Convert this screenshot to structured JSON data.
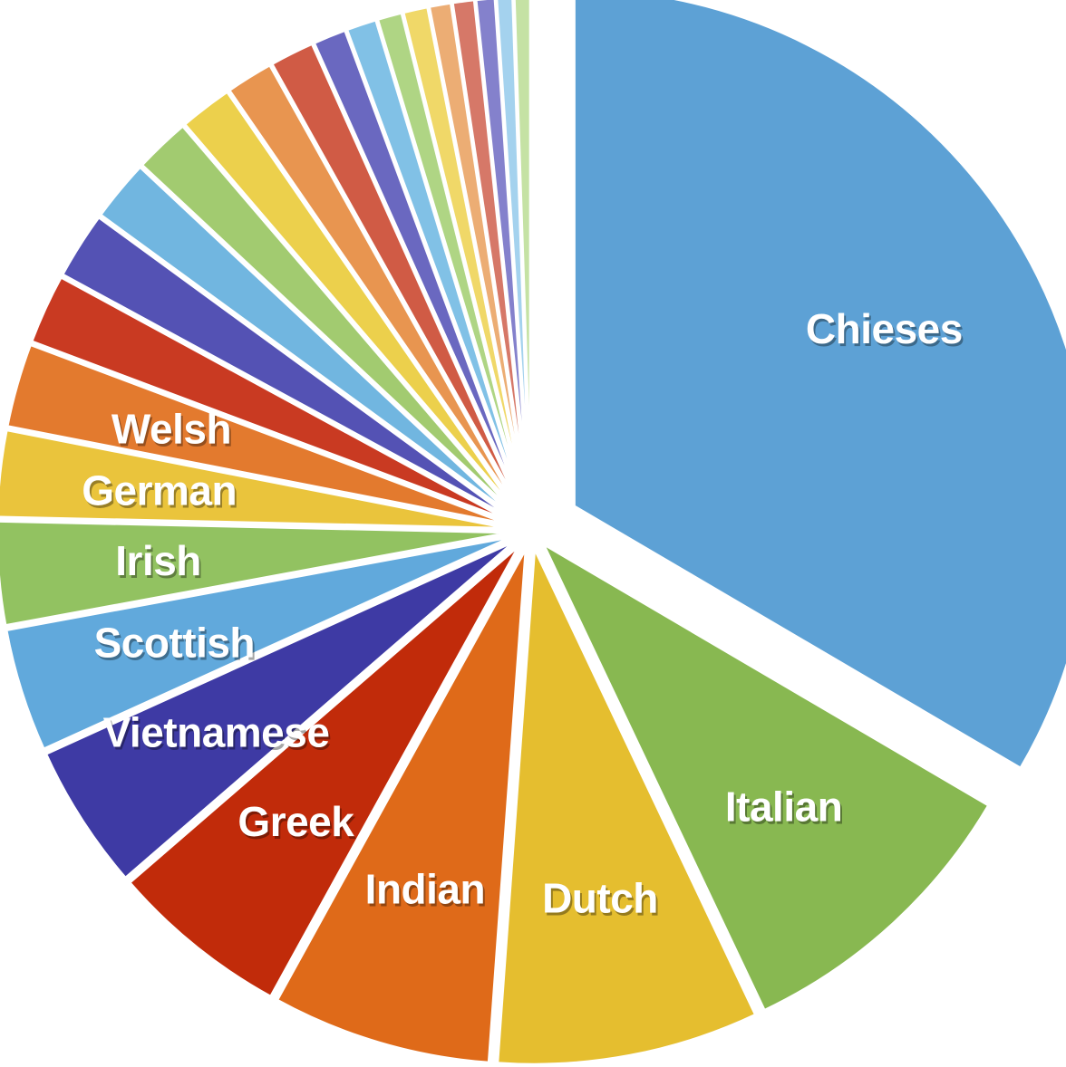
{
  "chart_data": {
    "type": "pie",
    "title": "",
    "legend": "none",
    "slices": [
      {
        "label": "Chieses",
        "value": 38.0,
        "color": "#5da1d5"
      },
      {
        "label": "Italian",
        "value": 10.8,
        "color": "#88b851"
      },
      {
        "label": "Dutch",
        "value": 9.3,
        "color": "#e5be2f"
      },
      {
        "label": "Indian",
        "value": 7.8,
        "color": "#df6a19"
      },
      {
        "label": "Greek",
        "value": 6.4,
        "color": "#c12b0a"
      },
      {
        "label": "Vietnamese",
        "value": 5.2,
        "color": "#3e3aa4"
      },
      {
        "label": "Scottish",
        "value": 4.4,
        "color": "#61a9dc"
      },
      {
        "label": "Irish",
        "value": 3.7,
        "color": "#92c261"
      },
      {
        "label": "German",
        "value": 3.1,
        "color": "#eac43c"
      },
      {
        "label": "Welsh",
        "value": 3.0,
        "color": "#e37a2e"
      },
      {
        "label": "",
        "value": 2.5,
        "color": "#c93a22"
      },
      {
        "label": "",
        "value": 2.4,
        "color": "#5452b4"
      },
      {
        "label": "",
        "value": 2.2,
        "color": "#71b6e0"
      },
      {
        "label": "",
        "value": 2.0,
        "color": "#a2cb70"
      },
      {
        "label": "",
        "value": 1.9,
        "color": "#ecd04c"
      },
      {
        "label": "",
        "value": 1.7,
        "color": "#e89550"
      },
      {
        "label": "",
        "value": 1.6,
        "color": "#d05b45"
      },
      {
        "label": "",
        "value": 1.2,
        "color": "#6a68c0"
      },
      {
        "label": "",
        "value": 1.1,
        "color": "#81c1e6"
      },
      {
        "label": "",
        "value": 0.9,
        "color": "#afd584"
      },
      {
        "label": "",
        "value": 0.9,
        "color": "#f0d868"
      },
      {
        "label": "",
        "value": 0.8,
        "color": "#ecad74"
      },
      {
        "label": "",
        "value": 0.8,
        "color": "#d67868"
      },
      {
        "label": "",
        "value": 0.7,
        "color": "#8481cc"
      },
      {
        "label": "",
        "value": 0.6,
        "color": "#a4d2ee"
      },
      {
        "label": "",
        "value": 0.6,
        "color": "#c5e2a4"
      }
    ]
  }
}
